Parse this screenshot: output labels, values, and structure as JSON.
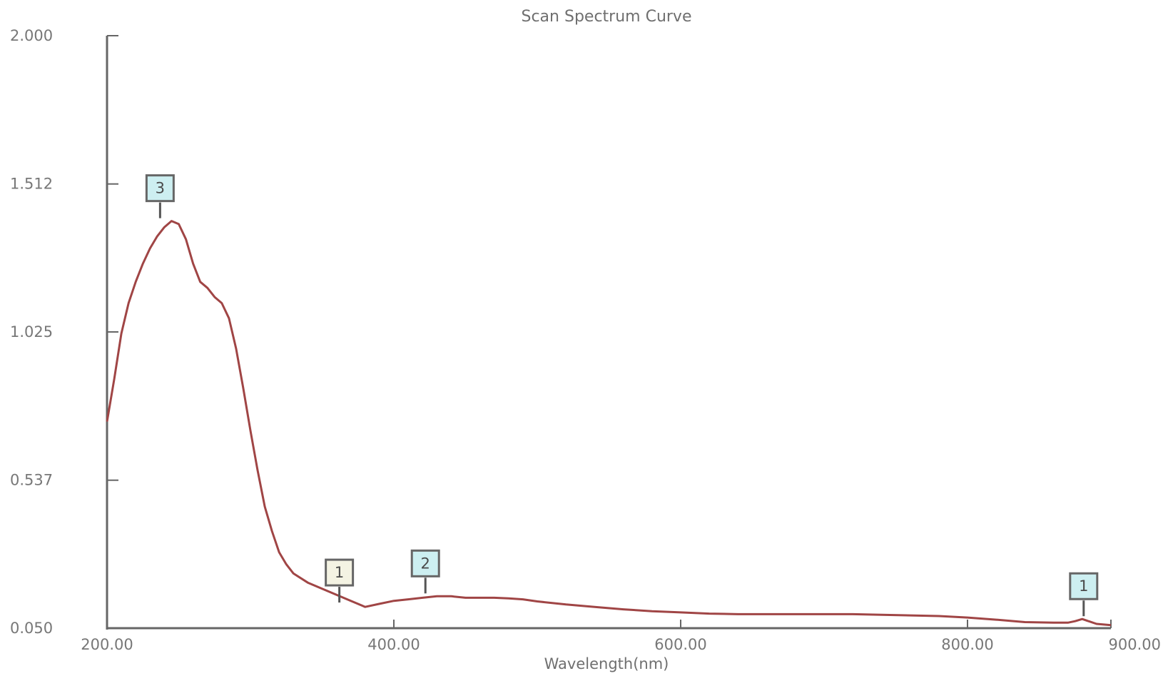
{
  "chart_data": {
    "type": "line",
    "title": "Scan Spectrum Curve",
    "xlabel": "Wavelength(nm)",
    "ylabel": "",
    "xlim": [
      200,
      900
    ],
    "ylim": [
      0.05,
      2.0
    ],
    "x_ticks": [
      200,
      400,
      600,
      800,
      900
    ],
    "x_tick_labels": [
      "200.00",
      "400.00",
      "600.00",
      "800.00",
      "900.00"
    ],
    "y_ticks": [
      0.05,
      0.537,
      1.025,
      1.512,
      2.0
    ],
    "y_tick_labels": [
      "0.050",
      "0.537",
      "1.025",
      "1.512",
      "2.000"
    ],
    "grid": false,
    "line_color": "#a04545",
    "series": [
      {
        "x": [
          200,
          205,
          210,
          215,
          220,
          225,
          230,
          235,
          240,
          245,
          250,
          255,
          260,
          265,
          270,
          275,
          280,
          285,
          290,
          295,
          300,
          305,
          310,
          315,
          320,
          325,
          330,
          340,
          350,
          360,
          370,
          380,
          390,
          400,
          410,
          420,
          430,
          440,
          450,
          460,
          470,
          480,
          490,
          500,
          520,
          540,
          560,
          580,
          600,
          620,
          640,
          660,
          680,
          700,
          720,
          740,
          760,
          780,
          800,
          820,
          840,
          860,
          870,
          875,
          880,
          885,
          890,
          895,
          900
        ],
        "y": [
          0.73,
          0.87,
          1.02,
          1.12,
          1.19,
          1.25,
          1.3,
          1.34,
          1.37,
          1.39,
          1.38,
          1.33,
          1.25,
          1.19,
          1.17,
          1.14,
          1.12,
          1.07,
          0.97,
          0.84,
          0.7,
          0.57,
          0.45,
          0.37,
          0.3,
          0.26,
          0.23,
          0.2,
          0.18,
          0.16,
          0.14,
          0.12,
          0.13,
          0.14,
          0.145,
          0.15,
          0.155,
          0.155,
          0.15,
          0.15,
          0.15,
          0.148,
          0.145,
          0.138,
          0.128,
          0.12,
          0.112,
          0.106,
          0.102,
          0.098,
          0.096,
          0.096,
          0.096,
          0.096,
          0.096,
          0.094,
          0.092,
          0.09,
          0.085,
          0.078,
          0.07,
          0.068,
          0.068,
          0.073,
          0.08,
          0.072,
          0.064,
          0.062,
          0.06
        ]
      }
    ],
    "annotations": [
      {
        "label": "3",
        "x": 237,
        "y": 1.39,
        "color": "#cdeff1"
      },
      {
        "label": "1",
        "x": 362,
        "y": 0.125,
        "color": "#f4f3e3"
      },
      {
        "label": "2",
        "x": 422,
        "y": 0.155,
        "color": "#cdeff1"
      },
      {
        "label": "1",
        "x": 881,
        "y": 0.08,
        "color": "#cdeff1"
      }
    ]
  }
}
